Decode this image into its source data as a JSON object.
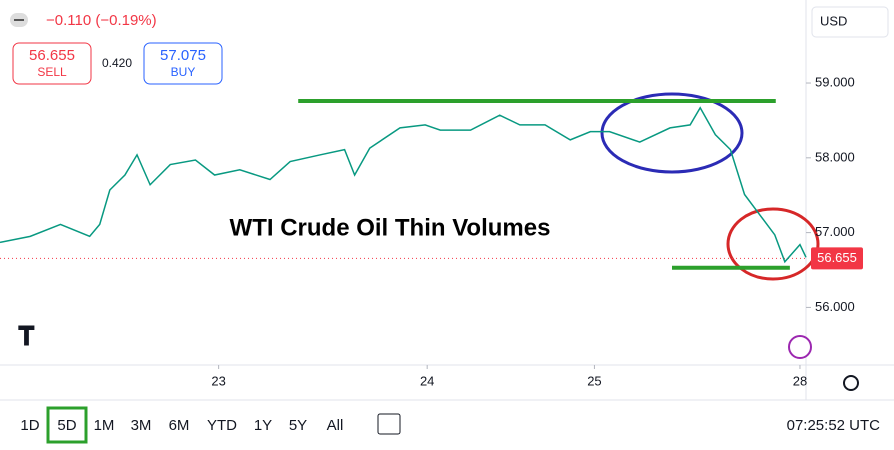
{
  "header": {
    "change": "−0.110 (−0.19%)",
    "sell_price": "56.655",
    "sell_label": "SELL",
    "spread": "0.420",
    "buy_price": "57.075",
    "buy_label": "BUY",
    "currency": "USD"
  },
  "chart_data": {
    "type": "line",
    "title": "WTI Crude Oil Thin Volumes",
    "x": [
      0,
      3,
      6,
      8.9,
      9.9,
      10.9,
      12.4,
      13.6,
      14.9,
      16.9,
      19.4,
      21.3,
      23.8,
      26.8,
      28.8,
      31.8,
      34.2,
      35.2,
      36.7,
      39.7,
      42.2,
      43.7,
      46.7,
      49.6,
      51.6,
      54.1,
      56.6,
      58.6,
      60.5,
      63.5,
      66.5,
      68.5,
      69.5,
      71,
      72.5,
      73.9,
      75.4,
      76.9,
      77.9,
      79.4,
      80
    ],
    "values": [
      56.87,
      56.95,
      57.11,
      56.95,
      57.11,
      57.57,
      57.77,
      58.04,
      57.64,
      57.91,
      57.97,
      57.77,
      57.84,
      57.71,
      57.95,
      58.04,
      58.11,
      57.77,
      58.13,
      58.4,
      58.44,
      58.37,
      58.37,
      58.57,
      58.44,
      58.44,
      58.24,
      58.35,
      58.35,
      58.21,
      58.4,
      58.44,
      58.67,
      58.31,
      58.11,
      57.51,
      57.24,
      56.97,
      56.61,
      56.84,
      56.67
    ],
    "color": "#089981",
    "xlim": [
      0,
      80
    ],
    "ylim": [
      55.23,
      60.11
    ],
    "xticks": [
      {
        "value": 21.7,
        "label": "23"
      },
      {
        "value": 42.4,
        "label": "24"
      },
      {
        "value": 59,
        "label": "25"
      },
      {
        "value": 79.4,
        "label": "28"
      }
    ],
    "yticks": [
      {
        "value": 56,
        "label": "56.000"
      },
      {
        "value": 57,
        "label": "57.000"
      },
      {
        "value": 58,
        "label": "58.000"
      },
      {
        "value": 59,
        "label": "59.000"
      }
    ],
    "last_price": {
      "value": 56.655,
      "label": "56.655"
    },
    "levels": [
      {
        "value": 58.76,
        "from": 29.6,
        "to": 77.0,
        "color": "#2ca02c"
      },
      {
        "value": 56.53,
        "from": 66.7,
        "to": 78.4,
        "color": "#2ca02c"
      }
    ]
  },
  "toolbar": {
    "ranges": [
      "1D",
      "5D",
      "1M",
      "3M",
      "6M",
      "YTD",
      "1Y",
      "5Y",
      "All"
    ],
    "active": 1,
    "time": "07:25:52 UTC"
  }
}
